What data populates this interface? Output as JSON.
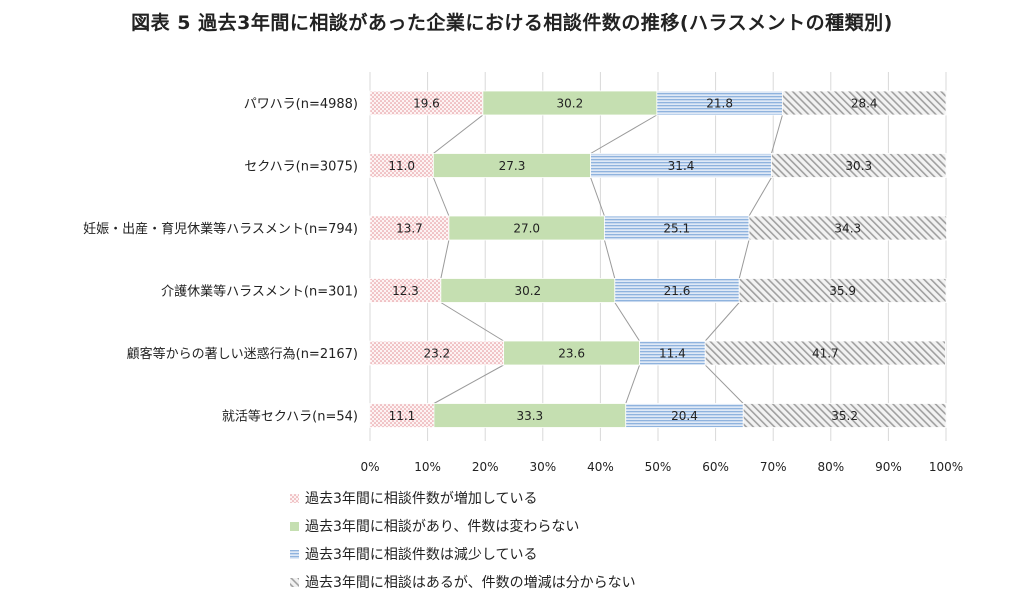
{
  "title": "図表 5 過去3年間に相談があった企業における相談件数の推移(ハラスメントの種類別)",
  "chart_data": {
    "type": "bar",
    "orientation": "horizontal",
    "stacked": true,
    "percent": true,
    "categories": [
      "パワハラ(n=4988)",
      "セクハラ(n=3075)",
      "妊娠・出産・育児休業等ハラスメント(n=794)",
      "介護休業等ハラスメント(n=301)",
      "顧客等からの著しい迷惑行為(n=2167)",
      "就活等セクハラ(n=54)"
    ],
    "series": [
      {
        "name": "過去3年間に相談件数が増加している",
        "values": [
          19.6,
          11.0,
          13.7,
          12.3,
          23.2,
          11.1
        ],
        "labels": [
          "19.6",
          "11.0",
          "13.7",
          "12.3",
          "23.2",
          "11.1"
        ],
        "color": "#e8959a",
        "pattern": "dots"
      },
      {
        "name": "過去3年間に相談があり、件数は変わらない",
        "values": [
          30.2,
          27.3,
          27.0,
          30.2,
          23.6,
          33.3
        ],
        "labels": [
          "30.2",
          "27.3",
          "27.0",
          "30.2",
          "23.6",
          "33.3"
        ],
        "color": "#c5dfb1",
        "pattern": "solid"
      },
      {
        "name": "過去3年間に相談件数は減少している",
        "values": [
          21.8,
          31.4,
          25.1,
          21.6,
          11.4,
          20.4
        ],
        "labels": [
          "21.8",
          "31.4",
          "25.1",
          "21.6",
          "11.4",
          "20.4"
        ],
        "color": "#8fb3de",
        "pattern": "hstripes"
      },
      {
        "name": "過去3年間に相談はあるが、件数の増減は分からない",
        "values": [
          28.4,
          30.3,
          34.3,
          35.9,
          41.7,
          35.2
        ],
        "labels": [
          "28.4",
          "30.3",
          "34.3",
          "35.9",
          "41.7",
          "35.2"
        ],
        "color": "#a6a6a6",
        "pattern": "diagonal"
      }
    ],
    "xlim": [
      0,
      100
    ],
    "xticks": [
      "0%",
      "10%",
      "20%",
      "30%",
      "40%",
      "50%",
      "60%",
      "70%",
      "80%",
      "90%",
      "100%"
    ],
    "grid": true,
    "legend_position": "bottom",
    "series_connector_lines": true
  }
}
